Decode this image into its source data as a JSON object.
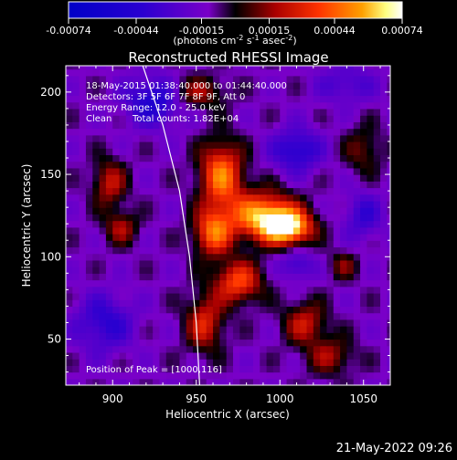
{
  "chart_data": {
    "type": "heatmap",
    "title": "Reconstructed RHESSI Image",
    "xlabel": "Heliocentric X (arcsec)",
    "ylabel": "Heliocentric Y (arcsec)",
    "xlim": [
      872,
      1066
    ],
    "ylim": [
      22,
      216
    ],
    "x_ticks": [
      900,
      950,
      1000,
      1050
    ],
    "y_ticks": [
      50,
      100,
      150,
      200
    ],
    "colorbar": {
      "ticks": [
        "-0.00074",
        "-0.00044",
        "-0.00015",
        "0.00015",
        "0.00044",
        "0.00074"
      ],
      "tick_values": [
        -0.00074,
        -0.00044,
        -0.00015,
        0.00015,
        0.00044,
        0.00074
      ],
      "range": [
        -0.00074,
        0.00074
      ],
      "units_text": "(photons cm",
      "units_exp1": "-2",
      "units_mid": " s",
      "units_exp2": "-1",
      "units_end": " asec",
      "units_exp3": "-2",
      "units_close": ")"
    },
    "annotations": {
      "time_range": "18-May-2015 01:38:40.000 to 01:44:40.000",
      "detectors": "Detectors: 3F 5F 6F 7F 8F 9F, Att 0",
      "energy_range": "Energy Range: 12.0 - 25.0 keV",
      "clean_label": "Clean",
      "total_counts": "Total counts: 1.82E+04",
      "peak_position": "Position of Peak = [1000,116]"
    },
    "peak": {
      "x": 1000,
      "y": 116
    },
    "limb_curve": [
      [
        918,
        216
      ],
      [
        930,
        180
      ],
      [
        940,
        140
      ],
      [
        946,
        100
      ],
      [
        950,
        60
      ],
      [
        952,
        22
      ]
    ],
    "sources": [
      {
        "x": 965,
        "y": 150,
        "amp": 0.0006,
        "sx": 9,
        "sy": 14
      },
      {
        "x": 990,
        "y": 125,
        "amp": 0.0007,
        "sx": 14,
        "sy": 10
      },
      {
        "x": 1005,
        "y": 118,
        "amp": 0.00072,
        "sx": 10,
        "sy": 7
      },
      {
        "x": 960,
        "y": 115,
        "amp": 0.00055,
        "sx": 8,
        "sy": 10
      },
      {
        "x": 975,
        "y": 85,
        "amp": 0.0005,
        "sx": 10,
        "sy": 9
      },
      {
        "x": 955,
        "y": 60,
        "amp": 0.0004,
        "sx": 8,
        "sy": 12
      },
      {
        "x": 898,
        "y": 145,
        "amp": 0.00035,
        "sx": 7,
        "sy": 10
      },
      {
        "x": 905,
        "y": 118,
        "amp": 0.0003,
        "sx": 7,
        "sy": 7
      },
      {
        "x": 950,
        "y": 200,
        "amp": 0.0003,
        "sx": 12,
        "sy": 7
      },
      {
        "x": 1015,
        "y": 60,
        "amp": 0.00035,
        "sx": 9,
        "sy": 9
      },
      {
        "x": 1030,
        "y": 40,
        "amp": 0.00028,
        "sx": 10,
        "sy": 8
      },
      {
        "x": 1050,
        "y": 165,
        "amp": 0.00022,
        "sx": 8,
        "sy": 10
      },
      {
        "x": 1038,
        "y": 95,
        "amp": 0.00022,
        "sx": 6,
        "sy": 6
      },
      {
        "x": 925,
        "y": 195,
        "amp": -0.0004,
        "sx": 12,
        "sy": 10
      },
      {
        "x": 1010,
        "y": 165,
        "amp": -0.00035,
        "sx": 10,
        "sy": 9
      },
      {
        "x": 1010,
        "y": 95,
        "amp": -0.00025,
        "sx": 7,
        "sy": 6
      },
      {
        "x": 895,
        "y": 60,
        "amp": -0.0003,
        "sx": 12,
        "sy": 12
      },
      {
        "x": 1050,
        "y": 125,
        "amp": -0.00025,
        "sx": 8,
        "sy": 10
      },
      {
        "x": 1040,
        "y": 205,
        "amp": -0.0002,
        "sx": 12,
        "sy": 8
      }
    ]
  },
  "footer": {
    "timestamp": "21-May-2022 09:26"
  }
}
